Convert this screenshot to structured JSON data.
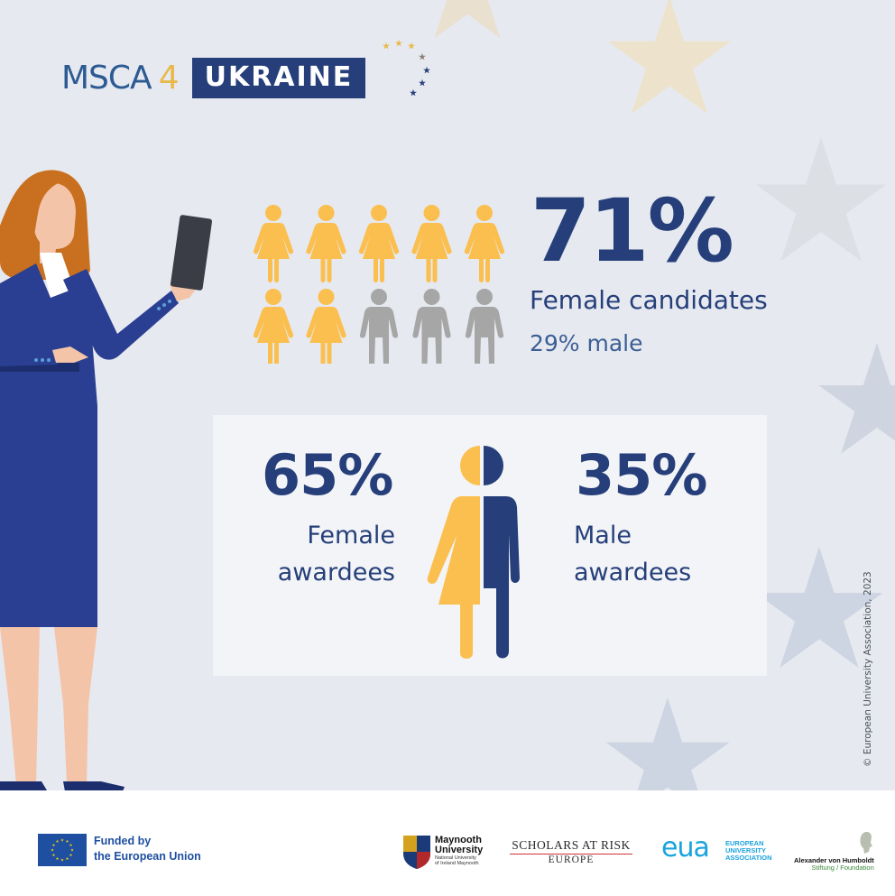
{
  "logo": {
    "msca": "MSCA",
    "four": "4",
    "ukraine": "UKRAINE",
    "accent_yellow": "#e8b84a",
    "accent_blue": "#263f7a"
  },
  "candidates": {
    "percent_female": "71%",
    "label": "Female candidates",
    "male_label": "29% male",
    "female_icon_count": 7,
    "male_icon_count": 3,
    "female_color": "#fbbf4f",
    "male_color": "#a6a6a6"
  },
  "awardees": {
    "female_percent": "65%",
    "female_label_line1": "Female",
    "female_label_line2": "awardees",
    "male_percent": "35%",
    "male_label_line1": "Male",
    "male_label_line2": "awardees",
    "icon": "split-gender-icon"
  },
  "copyright": "© European University Association, 2023",
  "footer": {
    "eu_line1": "Funded by",
    "eu_line2": "the European Union",
    "maynooth_line1": "Maynooth",
    "maynooth_line2": "University",
    "maynooth_sub1": "National University",
    "maynooth_sub2": "of Ireland Maynooth",
    "sar_title": "SCHOLARS AT RISK",
    "sar_sub": "EUROPE",
    "eua_mark": "eua",
    "eua_line1": "EUROPEAN",
    "eua_line2": "UNIVERSITY",
    "eua_line3": "ASSOCIATION",
    "avh_line1": "Alexander von Humboldt",
    "avh_line2": "Stiftung / Foundation"
  }
}
